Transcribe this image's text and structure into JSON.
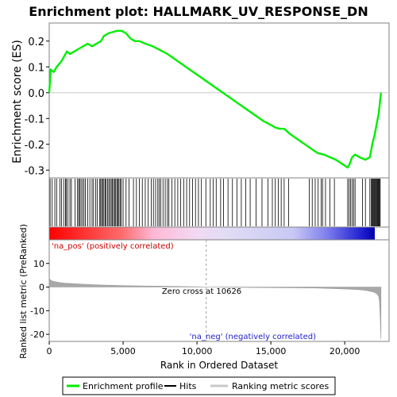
{
  "chart_data": {
    "type": "line",
    "title": "Enrichment plot: HALLMARK_UV_RESPONSE_DN",
    "top_panel": {
      "ylabel": "Enrichment score (ES)",
      "ylim": [
        -0.33,
        0.27
      ],
      "y_ticks": [
        -0.3,
        -0.2,
        -0.1,
        0.0,
        0.1,
        0.2
      ],
      "y_tick_labels": [
        "-0.3",
        "-0.2",
        "-0.1",
        "0.0",
        "0.1",
        "0.2"
      ],
      "line_color": "#00ee00",
      "series": [
        {
          "name": "Enrichment profile",
          "x": [
            0,
            100,
            300,
            500,
            800,
            1000,
            1200,
            1400,
            1700,
            2000,
            2300,
            2600,
            2900,
            3200,
            3500,
            3700,
            4000,
            4300,
            4600,
            4900,
            5200,
            5500,
            5800,
            6100,
            6500,
            7000,
            7500,
            8000,
            8500,
            9000,
            9500,
            10000,
            10500,
            11000,
            11500,
            12000,
            12500,
            13000,
            13500,
            14000,
            14500,
            15000,
            15300,
            15600,
            15900,
            16300,
            16800,
            17300,
            17800,
            18200,
            18600,
            19000,
            19400,
            19800,
            20200,
            20300,
            20500,
            20700,
            21000,
            21400,
            21700,
            21800,
            21900,
            22000,
            22100,
            22200,
            22300,
            22450
          ],
          "y": [
            0.0,
            0.09,
            0.08,
            0.1,
            0.12,
            0.14,
            0.16,
            0.15,
            0.16,
            0.17,
            0.18,
            0.19,
            0.18,
            0.19,
            0.2,
            0.22,
            0.23,
            0.235,
            0.24,
            0.24,
            0.23,
            0.21,
            0.2,
            0.2,
            0.19,
            0.18,
            0.165,
            0.15,
            0.13,
            0.11,
            0.09,
            0.07,
            0.05,
            0.03,
            0.01,
            -0.01,
            -0.03,
            -0.05,
            -0.07,
            -0.09,
            -0.11,
            -0.125,
            -0.135,
            -0.14,
            -0.14,
            -0.16,
            -0.18,
            -0.2,
            -0.22,
            -0.235,
            -0.24,
            -0.25,
            -0.26,
            -0.275,
            -0.29,
            -0.28,
            -0.25,
            -0.24,
            -0.25,
            -0.26,
            -0.25,
            -0.22,
            -0.19,
            -0.17,
            -0.14,
            -0.11,
            -0.08,
            0.0
          ]
        }
      ]
    },
    "hits": {
      "name": "Hits",
      "positions": [
        60,
        200,
        380,
        500,
        720,
        830,
        980,
        1100,
        1150,
        1260,
        1400,
        1500,
        1750,
        1900,
        2000,
        2050,
        2150,
        2250,
        2350,
        2450,
        2600,
        2750,
        2900,
        3000,
        3150,
        3250,
        3400,
        3480,
        3550,
        3620,
        3700,
        3780,
        3850,
        3950,
        4030,
        4120,
        4200,
        4280,
        4350,
        4430,
        4500,
        4580,
        4650,
        4720,
        4800,
        4880,
        5000,
        5200,
        5400,
        5700,
        5900,
        6100,
        6300,
        6500,
        6700,
        6900,
        7050,
        7200,
        7350,
        7450,
        7550,
        7700,
        7850,
        8000,
        8100,
        8300,
        8500,
        8700,
        8900,
        9100,
        9300,
        9500,
        9700,
        9900,
        10100,
        10300,
        10600,
        10900,
        11100,
        11300,
        11600,
        11800,
        12100,
        12400,
        12700,
        13000,
        13300,
        13600,
        14000,
        14400,
        14800,
        15100,
        15300,
        15500,
        15700,
        15900,
        16200,
        17600,
        17800,
        18000,
        18200,
        18400,
        18500,
        18700,
        19000,
        19300,
        20200,
        20300,
        20400,
        20500,
        20600,
        20700,
        21200,
        21400,
        21700,
        21800,
        21850,
        21900,
        21950,
        22000,
        22050,
        22100,
        22150,
        22200,
        22250,
        22300,
        22350,
        22400
      ]
    },
    "ranked_metric": {
      "name": "Ranking metric scores",
      "ylabel": "Ranked list metric (PreRanked)",
      "ylim": [
        -23,
        20
      ],
      "y_ticks": [
        -20,
        -10,
        0,
        10
      ],
      "y_tick_labels": [
        "-20",
        "-10",
        "0",
        "10"
      ],
      "x": [
        0,
        100,
        300,
        600,
        1000,
        2000,
        3000,
        4000,
        5000,
        6000,
        8000,
        10000,
        10626,
        12000,
        14000,
        16000,
        18000,
        19000,
        20000,
        21000,
        21500,
        22000,
        22200,
        22300,
        22350,
        22400,
        22450
      ],
      "y": [
        3.8,
        2.8,
        2.4,
        2.0,
        1.7,
        1.3,
        1.0,
        0.8,
        0.6,
        0.5,
        0.3,
        0.1,
        0.0,
        -0.1,
        -0.2,
        -0.3,
        -0.4,
        -0.6,
        -0.8,
        -1.1,
        -1.5,
        -2.2,
        -3.0,
        -4.0,
        -6.0,
        -12.0,
        -22.0
      ],
      "zero_cross_label": "Zero cross at 10626",
      "zero_cross": 10626,
      "pos_label": "'na_pos' (positively correlated)",
      "neg_label": "'na_neg' (negatively correlated)"
    },
    "xlabel": "Rank in Ordered Dataset",
    "xlim": [
      0,
      23000
    ],
    "x_ticks": [
      0,
      5000,
      10000,
      15000,
      20000
    ],
    "x_tick_labels": [
      "0",
      "5,000",
      "10,000",
      "15,000",
      "20,000"
    ],
    "legend": {
      "placement": "bottom",
      "entries": [
        "Enrichment profile",
        "Hits",
        "Ranking metric scores"
      ]
    }
  }
}
